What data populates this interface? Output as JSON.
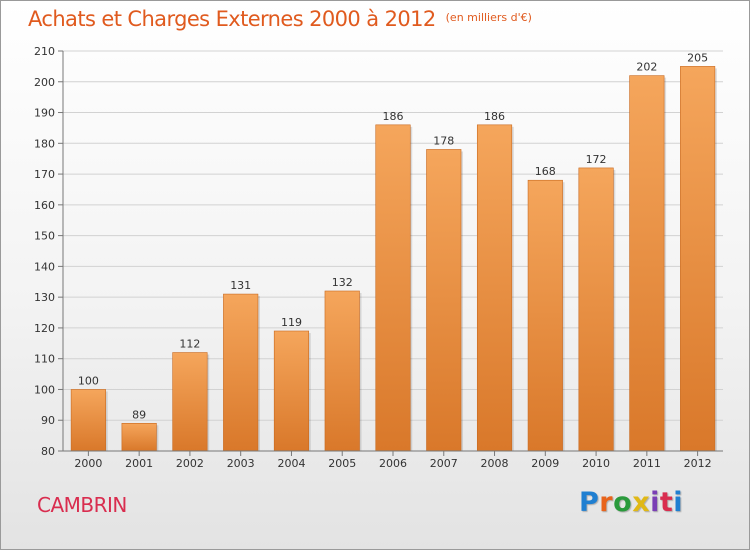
{
  "header": {
    "title": "Achats et Charges Externes 2000 à 2012",
    "subtitle": "(en milliers d'€)"
  },
  "footer": {
    "commune": "CAMBRIN",
    "logo_text": "Proxiti",
    "logo_colors": [
      "#1f7fd1",
      "#e8641c",
      "#2a9a3c",
      "#e0b816",
      "#7a3fb5",
      "#d92d4f",
      "#1f7fd1"
    ]
  },
  "colors": {
    "bar_top": "#f5a65c",
    "bar_bottom": "#d9782a",
    "title": "#e05a1e",
    "commune": "#d92d4f"
  },
  "chart_data": {
    "type": "bar",
    "title": "Achats et Charges Externes 2000 à 2012",
    "subtitle": "(en milliers d'€)",
    "xlabel": "",
    "ylabel": "",
    "categories": [
      "2000",
      "2001",
      "2002",
      "2003",
      "2004",
      "2005",
      "2006",
      "2007",
      "2008",
      "2009",
      "2010",
      "2011",
      "2012"
    ],
    "values": [
      100,
      89,
      112,
      131,
      119,
      132,
      186,
      178,
      186,
      168,
      172,
      202,
      205
    ],
    "ylim": [
      80,
      210
    ],
    "yticks": [
      80,
      90,
      100,
      110,
      120,
      130,
      140,
      150,
      160,
      170,
      180,
      190,
      200,
      210
    ],
    "grid": true,
    "legend": "none"
  }
}
